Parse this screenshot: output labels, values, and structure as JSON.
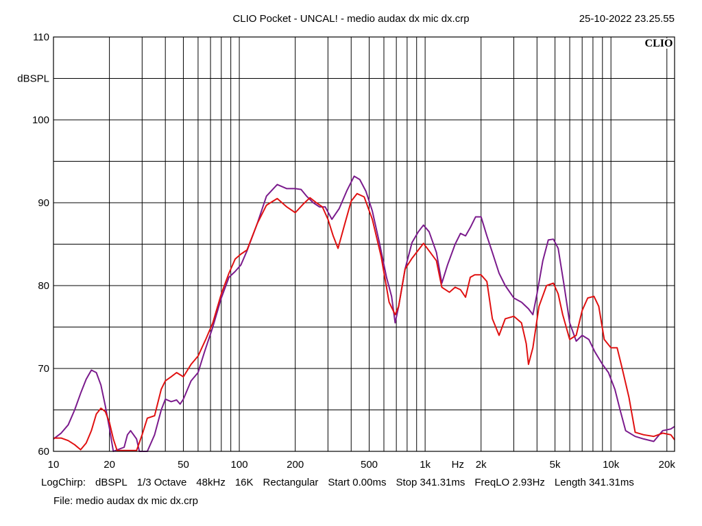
{
  "header": {
    "title": "CLIO Pocket - UNCAL! - medio audax dx mic dx.crp",
    "timestamp": "25-10-2022 23.25.55",
    "brand": "CLIO"
  },
  "info_line": [
    "LogChirp:",
    "dBSPL",
    "1/3 Octave",
    "48kHz",
    "16K",
    "Rectangular",
    "Start 0.00ms",
    "Stop 341.31ms",
    "FreqLO 2.93Hz",
    "Length 341.31ms"
  ],
  "file_line": "File: medio audax dx mic dx.crp",
  "chart_data": {
    "type": "line",
    "x_scale": "log",
    "xlim": [
      10,
      22000
    ],
    "ylim": [
      60,
      110
    ],
    "ylabel": "dBSPL",
    "xlabel": "Hz",
    "grid": true,
    "y_ticks": [
      {
        "value": 110,
        "label": "110"
      },
      {
        "value": 105,
        "label": "dBSPL"
      },
      {
        "value": 100,
        "label": "100"
      },
      {
        "value": 90,
        "label": "90"
      },
      {
        "value": 80,
        "label": "80"
      },
      {
        "value": 70,
        "label": "70"
      },
      {
        "value": 60,
        "label": "60"
      }
    ],
    "x_ticks": [
      {
        "value": 10,
        "label": "10"
      },
      {
        "value": 20,
        "label": "20"
      },
      {
        "value": 50,
        "label": "50"
      },
      {
        "value": 100,
        "label": "100"
      },
      {
        "value": 200,
        "label": "200"
      },
      {
        "value": 500,
        "label": "500"
      },
      {
        "value": 1000,
        "label": "1k"
      },
      {
        "value": 1500,
        "label": "Hz"
      },
      {
        "value": 2000,
        "label": "2k"
      },
      {
        "value": 5000,
        "label": "5k"
      },
      {
        "value": 10000,
        "label": "10k"
      },
      {
        "value": 20000,
        "label": "20k"
      }
    ],
    "series": [
      {
        "color": "#7a1a8c",
        "points": [
          [
            10,
            61.5
          ],
          [
            11,
            62.2
          ],
          [
            12,
            63.2
          ],
          [
            13,
            65
          ],
          [
            14,
            67
          ],
          [
            15,
            68.7
          ],
          [
            16,
            69.8
          ],
          [
            17,
            69.5
          ],
          [
            18,
            68
          ],
          [
            19,
            65.5
          ],
          [
            20,
            62.8
          ],
          [
            21,
            60
          ],
          [
            24,
            60.5
          ],
          [
            25,
            62
          ],
          [
            26,
            62.5
          ],
          [
            28,
            61.5
          ],
          [
            29,
            60
          ],
          [
            32,
            60
          ],
          [
            35,
            62
          ],
          [
            38,
            65
          ],
          [
            40,
            66.3
          ],
          [
            43,
            66
          ],
          [
            46,
            66.2
          ],
          [
            48,
            65.7
          ],
          [
            50,
            66.3
          ],
          [
            55,
            68.5
          ],
          [
            60,
            69.5
          ],
          [
            65,
            72
          ],
          [
            72,
            75
          ],
          [
            80,
            78.5
          ],
          [
            88,
            81
          ],
          [
            95,
            81.7
          ],
          [
            102,
            82.5
          ],
          [
            110,
            84.2
          ],
          [
            125,
            87.5
          ],
          [
            140,
            90.8
          ],
          [
            160,
            92.2
          ],
          [
            180,
            91.7
          ],
          [
            200,
            91.7
          ],
          [
            215,
            91.6
          ],
          [
            230,
            90.8
          ],
          [
            250,
            90
          ],
          [
            270,
            89.5
          ],
          [
            290,
            89.5
          ],
          [
            315,
            88
          ],
          [
            345,
            89.3
          ],
          [
            380,
            91.5
          ],
          [
            415,
            93.2
          ],
          [
            445,
            92.8
          ],
          [
            480,
            91.4
          ],
          [
            520,
            89
          ],
          [
            570,
            85
          ],
          [
            620,
            81
          ],
          [
            660,
            78.7
          ],
          [
            690,
            75.5
          ],
          [
            720,
            77.5
          ],
          [
            780,
            82
          ],
          [
            850,
            85.2
          ],
          [
            920,
            86.5
          ],
          [
            980,
            87.3
          ],
          [
            1050,
            86.5
          ],
          [
            1150,
            84
          ],
          [
            1230,
            80.3
          ],
          [
            1320,
            82.5
          ],
          [
            1450,
            85
          ],
          [
            1550,
            86.3
          ],
          [
            1650,
            86
          ],
          [
            1750,
            87
          ],
          [
            1870,
            88.3
          ],
          [
            2000,
            88.3
          ],
          [
            2150,
            86
          ],
          [
            2300,
            84
          ],
          [
            2500,
            81.5
          ],
          [
            2700,
            80
          ],
          [
            3000,
            78.5
          ],
          [
            3300,
            78
          ],
          [
            3600,
            77.2
          ],
          [
            3800,
            76.5
          ],
          [
            4000,
            79
          ],
          [
            4300,
            83
          ],
          [
            4600,
            85.5
          ],
          [
            4900,
            85.6
          ],
          [
            5200,
            84.5
          ],
          [
            5600,
            80
          ],
          [
            6000,
            75.5
          ],
          [
            6500,
            73.3
          ],
          [
            7000,
            74
          ],
          [
            7600,
            73.5
          ],
          [
            8200,
            72
          ],
          [
            9000,
            70.5
          ],
          [
            9700,
            69.5
          ],
          [
            10500,
            67.5
          ],
          [
            11200,
            65
          ],
          [
            12000,
            62.5
          ],
          [
            13500,
            61.8
          ],
          [
            15000,
            61.5
          ],
          [
            17000,
            61.2
          ],
          [
            19000,
            62.5
          ],
          [
            21000,
            62.7
          ],
          [
            22000,
            63
          ]
        ]
      },
      {
        "color": "#e01010",
        "points": [
          [
            10,
            61.6
          ],
          [
            11,
            61.6
          ],
          [
            12,
            61.3
          ],
          [
            13,
            60.8
          ],
          [
            14,
            60.2
          ],
          [
            15,
            61
          ],
          [
            16,
            62.5
          ],
          [
            17,
            64.5
          ],
          [
            18,
            65.2
          ],
          [
            19,
            64.8
          ],
          [
            20,
            63.5
          ],
          [
            21,
            61.5
          ],
          [
            22,
            60.1
          ],
          [
            28,
            60.1
          ],
          [
            30,
            62
          ],
          [
            32,
            64
          ],
          [
            35,
            64.3
          ],
          [
            38,
            67.5
          ],
          [
            40,
            68.5
          ],
          [
            43,
            69
          ],
          [
            46,
            69.5
          ],
          [
            50,
            69
          ],
          [
            55,
            70.5
          ],
          [
            60,
            71.5
          ],
          [
            66,
            73.5
          ],
          [
            72,
            75.5
          ],
          [
            80,
            79
          ],
          [
            88,
            81.5
          ],
          [
            95,
            83.2
          ],
          [
            102,
            83.8
          ],
          [
            110,
            84.3
          ],
          [
            125,
            87.5
          ],
          [
            140,
            89.7
          ],
          [
            160,
            90.5
          ],
          [
            180,
            89.5
          ],
          [
            200,
            88.8
          ],
          [
            220,
            89.8
          ],
          [
            240,
            90.6
          ],
          [
            260,
            90
          ],
          [
            280,
            89.5
          ],
          [
            300,
            88
          ],
          [
            320,
            86
          ],
          [
            340,
            84.5
          ],
          [
            370,
            87.5
          ],
          [
            400,
            90.2
          ],
          [
            430,
            91.1
          ],
          [
            470,
            90.7
          ],
          [
            520,
            88
          ],
          [
            580,
            83.5
          ],
          [
            640,
            78
          ],
          [
            690,
            76.5
          ],
          [
            720,
            77.5
          ],
          [
            780,
            82
          ],
          [
            850,
            83.3
          ],
          [
            920,
            84.3
          ],
          [
            980,
            85.1
          ],
          [
            1050,
            84.2
          ],
          [
            1150,
            83
          ],
          [
            1230,
            79.8
          ],
          [
            1350,
            79.2
          ],
          [
            1450,
            79.8
          ],
          [
            1550,
            79.5
          ],
          [
            1650,
            78.6
          ],
          [
            1750,
            81
          ],
          [
            1850,
            81.3
          ],
          [
            2000,
            81.3
          ],
          [
            2150,
            80.5
          ],
          [
            2300,
            76
          ],
          [
            2500,
            74
          ],
          [
            2700,
            76
          ],
          [
            3000,
            76.3
          ],
          [
            3300,
            75.5
          ],
          [
            3500,
            73
          ],
          [
            3600,
            70.5
          ],
          [
            3800,
            72.5
          ],
          [
            4100,
            77.5
          ],
          [
            4500,
            80
          ],
          [
            4900,
            80.3
          ],
          [
            5200,
            79
          ],
          [
            5500,
            76.5
          ],
          [
            6000,
            73.5
          ],
          [
            6500,
            74
          ],
          [
            7000,
            77
          ],
          [
            7500,
            78.5
          ],
          [
            8100,
            78.7
          ],
          [
            8600,
            77.5
          ],
          [
            9200,
            73.5
          ],
          [
            10000,
            72.5
          ],
          [
            10800,
            72.5
          ],
          [
            11500,
            70
          ],
          [
            12500,
            66.5
          ],
          [
            13500,
            62.3
          ],
          [
            15000,
            62
          ],
          [
            17000,
            61.8
          ],
          [
            19000,
            62.2
          ],
          [
            21000,
            62
          ],
          [
            22000,
            61.4
          ]
        ]
      }
    ]
  }
}
